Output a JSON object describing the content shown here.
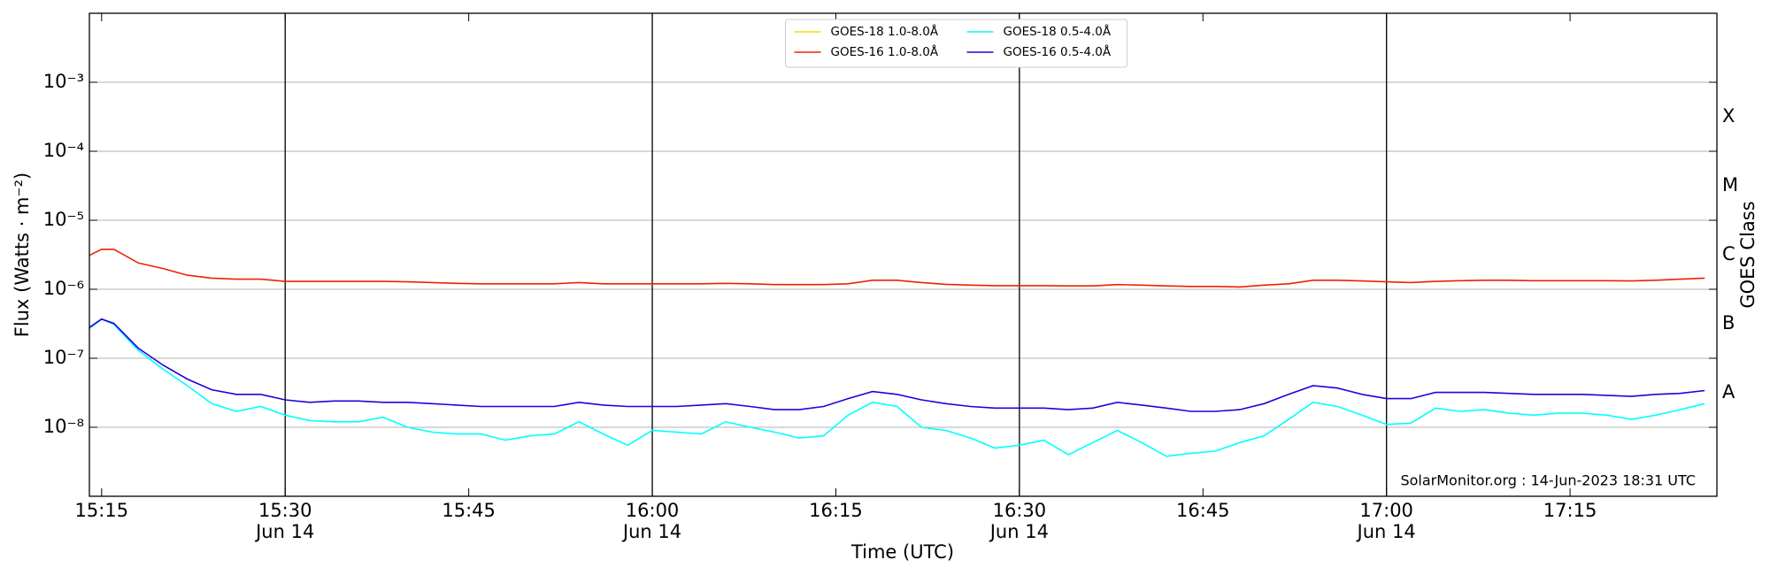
{
  "chart_data": {
    "type": "line",
    "xlabel": "Time (UTC)",
    "ylabel": "Flux (Watts · m⁻²)",
    "y2label": "GOES Class",
    "annotation": "SolarMonitor.org : 14-Jun-2023 18:31 UTC",
    "log_y": true,
    "grid": true,
    "legend": "upper center",
    "x": [
      "15:14",
      "15:15",
      "15:16",
      "15:18",
      "15:20",
      "15:22",
      "15:24",
      "15:26",
      "15:28",
      "15:30",
      "15:32",
      "15:34",
      "15:36",
      "15:38",
      "15:40",
      "15:42",
      "15:44",
      "15:46",
      "15:48",
      "15:50",
      "15:52",
      "15:54",
      "15:56",
      "15:58",
      "16:00",
      "16:02",
      "16:04",
      "16:06",
      "16:08",
      "16:10",
      "16:12",
      "16:14",
      "16:16",
      "16:18",
      "16:20",
      "16:22",
      "16:24",
      "16:26",
      "16:28",
      "16:30",
      "16:32",
      "16:34",
      "16:36",
      "16:38",
      "16:40",
      "16:42",
      "16:44",
      "16:46",
      "16:48",
      "16:50",
      "16:52",
      "16:54",
      "16:56",
      "16:58",
      "17:00",
      "17:02",
      "17:04",
      "17:06",
      "17:08",
      "17:10",
      "17:12",
      "17:14",
      "17:16",
      "17:18",
      "17:20",
      "17:22",
      "17:24",
      "17:26"
    ],
    "xlim": [
      "15:14",
      "17:27"
    ],
    "xticks": [
      "15:15",
      {
        "value": "15:30",
        "label": [
          "15:30",
          "Jun 14"
        ]
      },
      "15:45",
      {
        "value": "16:00",
        "label": [
          "16:00",
          "Jun 14"
        ]
      },
      "16:15",
      {
        "value": "16:30",
        "label": [
          "16:30",
          "Jun 14"
        ]
      },
      "16:45",
      {
        "value": "17:00",
        "label": [
          "17:00",
          "Jun 14"
        ]
      },
      "17:15"
    ],
    "ylim": [
      1e-09,
      0.01
    ],
    "yticks": [
      {
        "value": 1e-08,
        "label": "10⁻⁸"
      },
      {
        "value": 1e-07,
        "label": "10⁻⁷"
      },
      {
        "value": 1e-06,
        "label": "10⁻⁶"
      },
      {
        "value": 1e-05,
        "label": "10⁻⁵"
      },
      {
        "value": 0.0001,
        "label": "10⁻⁴"
      },
      {
        "value": 0.001,
        "label": "10⁻³"
      }
    ],
    "y2lim": [
      1e-09,
      0.01
    ],
    "y2ticks": [
      {
        "value": 3.16e-08,
        "label": "A"
      },
      {
        "value": 3.16e-07,
        "label": "B"
      },
      {
        "value": 3.16e-06,
        "label": "C"
      },
      {
        "value": 3.16e-05,
        "label": "M"
      },
      {
        "value": 0.000316,
        "label": "X"
      }
    ],
    "series": [
      {
        "name": "GOES-18 1.0-8.0Å",
        "color": "#ffd700",
        "values": [
          null,
          null,
          null,
          null,
          null,
          null,
          null,
          null,
          null,
          null,
          null,
          null,
          null,
          null,
          null,
          null,
          null,
          null,
          null,
          null,
          null,
          null,
          null,
          null,
          null,
          null,
          null,
          null,
          null,
          null,
          null,
          null,
          null,
          null,
          null,
          null,
          null,
          null,
          null,
          null,
          null,
          null,
          null,
          null,
          null,
          null,
          null,
          null,
          null,
          null,
          null,
          null,
          null,
          null,
          null,
          null,
          null,
          null,
          null,
          null,
          null,
          null,
          null,
          null,
          null,
          null,
          null,
          null
        ]
      },
      {
        "name": "GOES-16 1.0-8.0Å",
        "color": "#ee2200",
        "values": [
          3.1e-06,
          3.8e-06,
          3.8e-06,
          2.4e-06,
          2e-06,
          1.6e-06,
          1.45e-06,
          1.4e-06,
          1.4e-06,
          1.3e-06,
          1.3e-06,
          1.3e-06,
          1.3e-06,
          1.3e-06,
          1.28e-06,
          1.25e-06,
          1.22e-06,
          1.2e-06,
          1.2e-06,
          1.2e-06,
          1.2e-06,
          1.25e-06,
          1.2e-06,
          1.2e-06,
          1.2e-06,
          1.2e-06,
          1.2e-06,
          1.22e-06,
          1.2e-06,
          1.17e-06,
          1.17e-06,
          1.17e-06,
          1.2e-06,
          1.35e-06,
          1.35e-06,
          1.25e-06,
          1.18e-06,
          1.15e-06,
          1.13e-06,
          1.13e-06,
          1.13e-06,
          1.12e-06,
          1.12e-06,
          1.17e-06,
          1.15e-06,
          1.12e-06,
          1.1e-06,
          1.1e-06,
          1.08e-06,
          1.15e-06,
          1.2e-06,
          1.35e-06,
          1.35e-06,
          1.32e-06,
          1.28e-06,
          1.25e-06,
          1.3e-06,
          1.33e-06,
          1.35e-06,
          1.35e-06,
          1.33e-06,
          1.33e-06,
          1.33e-06,
          1.33e-06,
          1.32e-06,
          1.35e-06,
          1.4e-06,
          1.45e-06
        ]
      },
      {
        "name": "GOES-18 0.5-4.0Å",
        "color": "#00ffff",
        "values": [
          2.7e-07,
          3.7e-07,
          3.1e-07,
          1.3e-07,
          7e-08,
          4e-08,
          2.2e-08,
          1.7e-08,
          2e-08,
          1.5e-08,
          1.25e-08,
          1.2e-08,
          1.2e-08,
          1.4e-08,
          1e-08,
          8.5e-09,
          8e-09,
          8e-09,
          6.5e-09,
          7.5e-09,
          8e-09,
          1.2e-08,
          8e-09,
          5.5e-09,
          9e-09,
          8.5e-09,
          8e-09,
          1.2e-08,
          1e-08,
          8.5e-09,
          7e-09,
          7.5e-09,
          1.5e-08,
          2.3e-08,
          2e-08,
          1e-08,
          9e-09,
          7e-09,
          5e-09,
          5.5e-09,
          6.5e-09,
          4e-09,
          6e-09,
          9e-09,
          6e-09,
          3.8e-09,
          4.2e-09,
          4.5e-09,
          6e-09,
          7.5e-09,
          1.3e-08,
          2.3e-08,
          2e-08,
          1.5e-08,
          1.1e-08,
          1.15e-08,
          1.9e-08,
          1.7e-08,
          1.8e-08,
          1.6e-08,
          1.5e-08,
          1.6e-08,
          1.6e-08,
          1.5e-08,
          1.3e-08,
          1.5e-08,
          1.8e-08,
          2.2e-08
        ]
      },
      {
        "name": "GOES-16 0.5-4.0Å",
        "color": "#2200dd",
        "values": [
          2.8e-07,
          3.7e-07,
          3.2e-07,
          1.4e-07,
          8e-08,
          5e-08,
          3.5e-08,
          3e-08,
          3e-08,
          2.5e-08,
          2.3e-08,
          2.4e-08,
          2.4e-08,
          2.3e-08,
          2.3e-08,
          2.2e-08,
          2.1e-08,
          2e-08,
          2e-08,
          2e-08,
          2e-08,
          2.3e-08,
          2.1e-08,
          2e-08,
          2e-08,
          2e-08,
          2.1e-08,
          2.2e-08,
          2e-08,
          1.8e-08,
          1.8e-08,
          2e-08,
          2.6e-08,
          3.3e-08,
          3e-08,
          2.5e-08,
          2.2e-08,
          2e-08,
          1.9e-08,
          1.9e-08,
          1.9e-08,
          1.8e-08,
          1.9e-08,
          2.3e-08,
          2.1e-08,
          1.9e-08,
          1.7e-08,
          1.7e-08,
          1.8e-08,
          2.2e-08,
          3e-08,
          4e-08,
          3.7e-08,
          3e-08,
          2.6e-08,
          2.6e-08,
          3.2e-08,
          3.2e-08,
          3.2e-08,
          3.1e-08,
          3e-08,
          3e-08,
          3e-08,
          2.9e-08,
          2.8e-08,
          3e-08,
          3.1e-08,
          3.4e-08
        ]
      }
    ]
  }
}
